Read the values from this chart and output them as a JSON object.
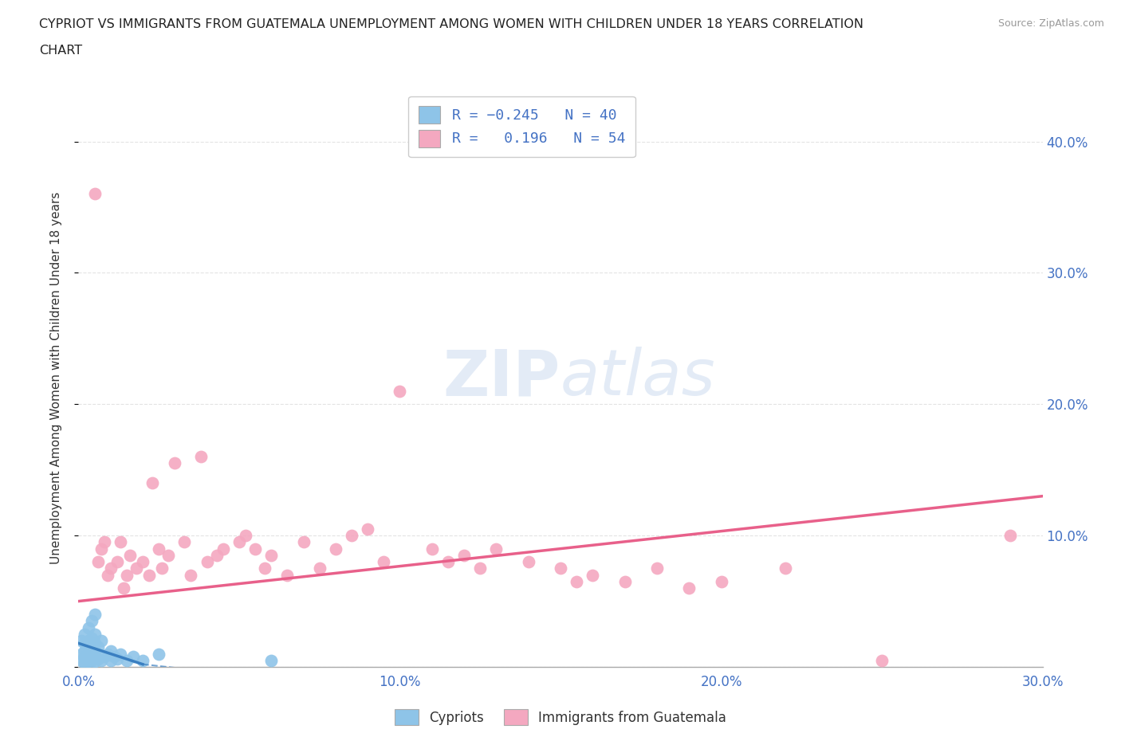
{
  "title_line1": "CYPRIOT VS IMMIGRANTS FROM GUATEMALA UNEMPLOYMENT AMONG WOMEN WITH CHILDREN UNDER 18 YEARS CORRELATION",
  "title_line2": "CHART",
  "source": "Source: ZipAtlas.com",
  "ylabel": "Unemployment Among Women with Children Under 18 years",
  "xlim": [
    0.0,
    0.3
  ],
  "ylim": [
    0.0,
    0.44
  ],
  "xtick_positions": [
    0.0,
    0.05,
    0.1,
    0.15,
    0.2,
    0.25,
    0.3
  ],
  "xtick_labels": [
    "0.0%",
    "",
    "10.0%",
    "",
    "20.0%",
    "",
    "30.0%"
  ],
  "ytick_positions": [
    0.0,
    0.1,
    0.2,
    0.3,
    0.4
  ],
  "ytick_labels": [
    "",
    "10.0%",
    "20.0%",
    "30.0%",
    "40.0%"
  ],
  "cypriot_color": "#8ec4e8",
  "guatemala_color": "#f4a8c0",
  "cypriot_trend_color": "#3a7fc1",
  "guatemala_trend_color": "#e8608a",
  "watermark_color": "#d0dff0",
  "background_color": "#ffffff",
  "grid_color": "#dddddd",
  "tick_color": "#4472c4",
  "title_color": "#222222",
  "source_color": "#999999",
  "ylabel_color": "#333333",
  "legend_color": "#4472c4",
  "cypriot_x": [
    0.001,
    0.001,
    0.001,
    0.002,
    0.002,
    0.002,
    0.002,
    0.002,
    0.003,
    0.003,
    0.003,
    0.003,
    0.003,
    0.004,
    0.004,
    0.004,
    0.004,
    0.004,
    0.005,
    0.005,
    0.005,
    0.005,
    0.005,
    0.005,
    0.006,
    0.006,
    0.007,
    0.007,
    0.008,
    0.009,
    0.01,
    0.01,
    0.011,
    0.012,
    0.013,
    0.015,
    0.017,
    0.02,
    0.025,
    0.06
  ],
  "cypriot_y": [
    0.005,
    0.01,
    0.02,
    0.003,
    0.008,
    0.012,
    0.018,
    0.025,
    0.004,
    0.009,
    0.015,
    0.02,
    0.03,
    0.005,
    0.01,
    0.015,
    0.022,
    0.035,
    0.004,
    0.008,
    0.012,
    0.018,
    0.025,
    0.04,
    0.006,
    0.015,
    0.005,
    0.02,
    0.008,
    0.01,
    0.005,
    0.012,
    0.008,
    0.006,
    0.01,
    0.005,
    0.008,
    0.005,
    0.01,
    0.005
  ],
  "cypriot_trend_x": [
    0.0,
    0.065
  ],
  "cypriot_trend_y_start": 0.018,
  "cypriot_trend_y_end": 0.0,
  "guatemala_x": [
    0.005,
    0.006,
    0.007,
    0.008,
    0.009,
    0.01,
    0.012,
    0.013,
    0.014,
    0.015,
    0.016,
    0.018,
    0.02,
    0.022,
    0.023,
    0.025,
    0.026,
    0.028,
    0.03,
    0.033,
    0.035,
    0.038,
    0.04,
    0.043,
    0.045,
    0.05,
    0.052,
    0.055,
    0.058,
    0.06,
    0.065,
    0.07,
    0.075,
    0.08,
    0.085,
    0.09,
    0.095,
    0.1,
    0.11,
    0.115,
    0.12,
    0.125,
    0.13,
    0.14,
    0.15,
    0.155,
    0.16,
    0.17,
    0.18,
    0.19,
    0.2,
    0.22,
    0.25,
    0.29
  ],
  "guatemala_y": [
    0.36,
    0.08,
    0.09,
    0.095,
    0.07,
    0.075,
    0.08,
    0.095,
    0.06,
    0.07,
    0.085,
    0.075,
    0.08,
    0.07,
    0.14,
    0.09,
    0.075,
    0.085,
    0.155,
    0.095,
    0.07,
    0.16,
    0.08,
    0.085,
    0.09,
    0.095,
    0.1,
    0.09,
    0.075,
    0.085,
    0.07,
    0.095,
    0.075,
    0.09,
    0.1,
    0.105,
    0.08,
    0.21,
    0.09,
    0.08,
    0.085,
    0.075,
    0.09,
    0.08,
    0.075,
    0.065,
    0.07,
    0.065,
    0.075,
    0.06,
    0.065,
    0.075,
    0.005,
    0.1
  ]
}
